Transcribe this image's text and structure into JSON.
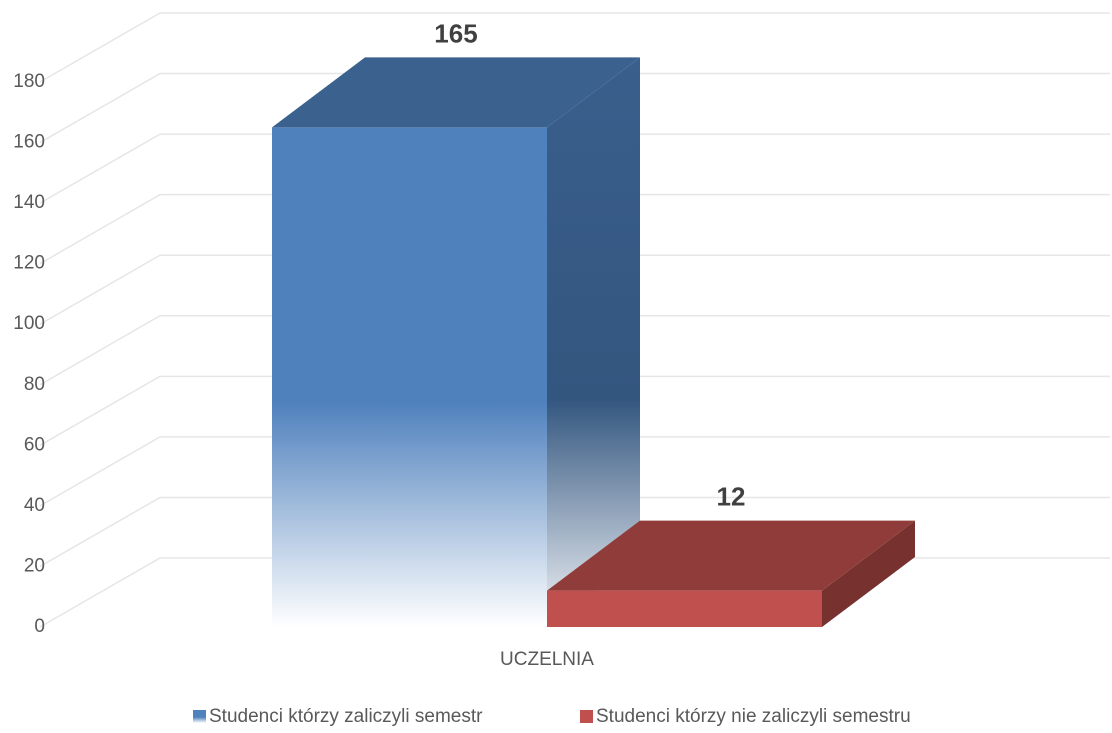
{
  "chart_data": {
    "type": "bar3d",
    "categories": [
      "UCZELNIA"
    ],
    "series": [
      {
        "name": "Studenci którzy zaliczyli semestr",
        "color": "#4f81bd",
        "values": [
          165
        ]
      },
      {
        "name": "Studenci którzy nie zaliczyli semestru",
        "color": "#c0504d",
        "values": [
          12
        ]
      }
    ],
    "ylim": [
      0,
      180
    ],
    "yticks": [
      0,
      20,
      40,
      60,
      80,
      100,
      120,
      140,
      160,
      180
    ],
    "grid": true,
    "legend": "bottom"
  }
}
